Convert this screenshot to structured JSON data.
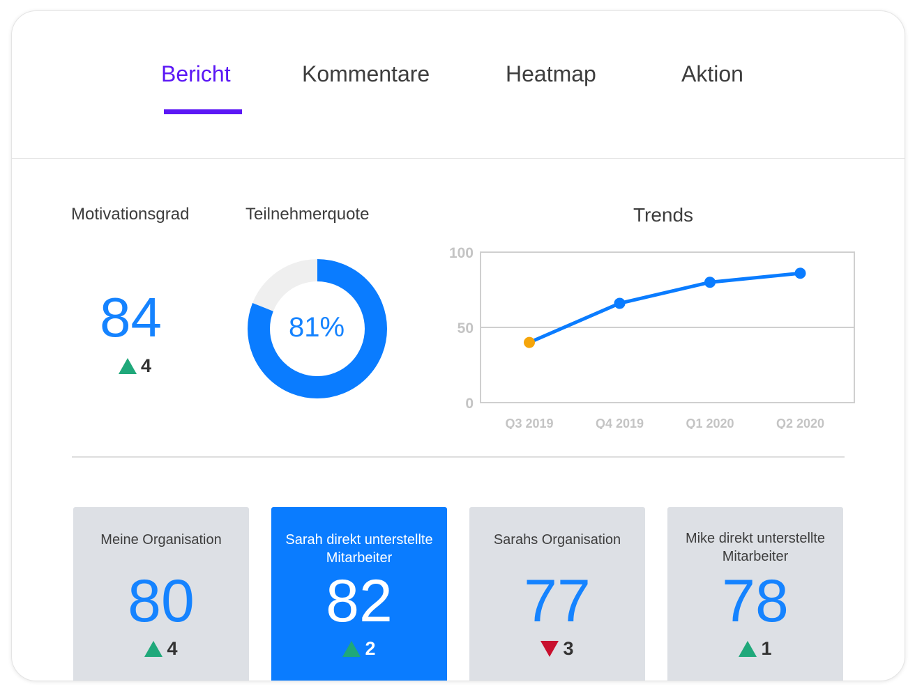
{
  "tabs": [
    {
      "label": "Bericht",
      "active": true
    },
    {
      "label": "Kommentare",
      "active": false
    },
    {
      "label": "Heatmap",
      "active": false
    },
    {
      "label": "Aktion",
      "active": false
    }
  ],
  "motivation": {
    "title": "Motivationsgrad",
    "value": "84",
    "delta": "4",
    "direction": "up"
  },
  "participation": {
    "title": "Teilnehmerquote",
    "label": "81%",
    "percent": 81
  },
  "chart_data": {
    "type": "line",
    "title": "Trends",
    "x": [
      "Q3 2019",
      "Q4 2019",
      "Q1 2020",
      "Q2 2020"
    ],
    "series": [
      {
        "values": [
          40,
          66,
          80,
          86
        ]
      }
    ],
    "ylim": [
      0,
      100
    ],
    "yticks": [
      "0",
      "50",
      "100"
    ],
    "grid": true,
    "highlight_first_point_color": "#f5a50a",
    "line_color": "#0a7cff"
  },
  "tiles": [
    {
      "label": "Meine Organisation",
      "value": "80",
      "delta": "4",
      "direction": "up",
      "selected": false
    },
    {
      "label": "Sarah direkt unterstellte Mitarbeiter",
      "value": "82",
      "delta": "2",
      "direction": "up",
      "selected": true
    },
    {
      "label": "Sarahs Organisation",
      "value": "77",
      "delta": "3",
      "direction": "down",
      "selected": false
    },
    {
      "label": "Mike direkt unterstellte Mitarbeiter",
      "value": "78",
      "delta": "1",
      "direction": "up",
      "selected": false
    }
  ],
  "colors": {
    "accent": "#5b17f5",
    "primary_blue": "#1583ff",
    "up": "#1fa87a",
    "down": "#c8102e",
    "donut_track": "#efefef"
  }
}
